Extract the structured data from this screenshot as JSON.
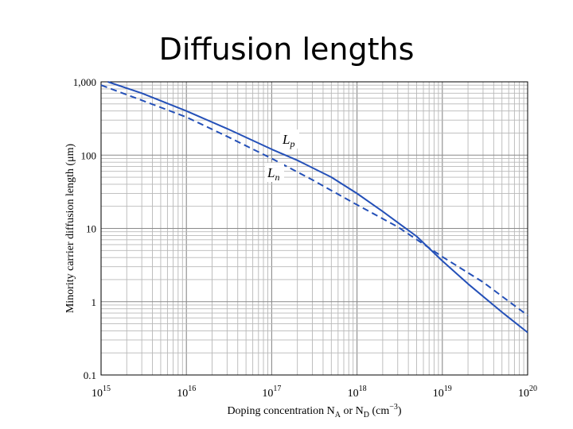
{
  "slide_title": "Diffusion lengths",
  "chart_data": {
    "type": "line",
    "xscale": "log",
    "yscale": "log",
    "xlim": [
      1000000000000000.0,
      1e+20
    ],
    "ylim": [
      0.1,
      1000
    ],
    "xlabel": "Doping concentration N_A or N_D (cm^-3)",
    "ylabel": "Minority carrier diffusion length (μm)",
    "x_ticks": [
      {
        "base": "10",
        "exp": "15",
        "value": 1000000000000000.0
      },
      {
        "base": "10",
        "exp": "16",
        "value": 1e+16
      },
      {
        "base": "10",
        "exp": "17",
        "value": 1e+17
      },
      {
        "base": "10",
        "exp": "18",
        "value": 1e+18
      },
      {
        "base": "10",
        "exp": "19",
        "value": 1e+19
      },
      {
        "base": "10",
        "exp": "20",
        "value": 1e+20
      }
    ],
    "y_ticks": [
      {
        "label": "0.1",
        "value": 0.1
      },
      {
        "label": "1",
        "value": 1
      },
      {
        "label": "10",
        "value": 10
      },
      {
        "label": "100",
        "value": 100
      },
      {
        "label": "1,000",
        "value": 1000
      }
    ],
    "series": [
      {
        "name": "Lp",
        "label_main": "L",
        "label_sub": "p",
        "style": "solid",
        "color": "#2450b8",
        "x": [
          1200000000000000.0,
          3000000000000000.0,
          1e+16,
          3e+16,
          1e+17,
          2e+17,
          5e+17,
          1e+18,
          2e+18,
          5e+18,
          1e+19,
          2e+19,
          5e+19,
          1e+20
        ],
        "y": [
          1000,
          700,
          400,
          230,
          120,
          85,
          50,
          30,
          17,
          7.8,
          3.6,
          1.75,
          0.72,
          0.38
        ]
      },
      {
        "name": "Ln",
        "label_main": "L",
        "label_sub": "n",
        "style": "dashed",
        "color": "#2450b8",
        "x": [
          1000000000000000.0,
          3000000000000000.0,
          1e+16,
          3e+16,
          1e+17,
          3e+17,
          1e+18,
          3e+18,
          1e+19,
          3e+19,
          1e+20
        ],
        "y": [
          900,
          560,
          330,
          180,
          90,
          46,
          21,
          10.5,
          4.1,
          1.85,
          0.65
        ]
      }
    ]
  }
}
